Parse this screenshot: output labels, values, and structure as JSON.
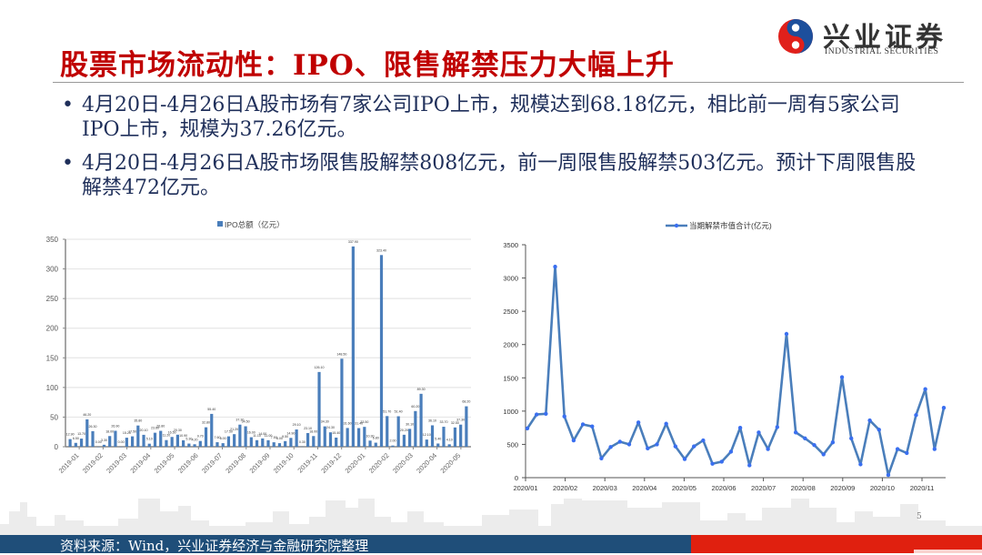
{
  "header": {
    "title": "股票市场流动性：IPO、限售解禁压力大幅上升",
    "logo_cn": "兴业证券",
    "logo_en": "INDUSTRIAL SECURITIES",
    "logo_colors": {
      "red": "#e0201b",
      "blue": "#1d4f9c"
    }
  },
  "bullets": [
    "4月20日-4月26日A股市场有7家公司IPO上市，规模达到68.18亿元，相比前一周有5家公司IPO上市，规模为37.26亿元。",
    "4月20日-4月26日A股市场限售股解禁808亿元，前一周限售股解禁503亿元。预计下周限售股解禁472亿元。"
  ],
  "footer": {
    "source": "资料来源：Wind，兴业证券经济与金融研究院整理",
    "page_number": "5"
  },
  "colors": {
    "title_red": "#c00000",
    "text_navy": "#1f2f5a",
    "series_blue": "#4a7ebb",
    "marker_blue": "#3a6ff0",
    "footer_navy": "#1f4e79",
    "footer_red": "#e0200f"
  },
  "chart_data": [
    {
      "type": "bar",
      "title": "",
      "legend": [
        "IPO总额（亿元）"
      ],
      "legend_position": "top",
      "xlabel": "",
      "ylabel": "",
      "ylim": [
        0,
        350
      ],
      "yticks": [
        0,
        50,
        100,
        150,
        200,
        250,
        300,
        350
      ],
      "grid": true,
      "x_tick_labels": [
        "2019-01",
        "2019-02",
        "2019-03",
        "2019-04",
        "2019-05",
        "2019-06",
        "2019-07",
        "2019-08",
        "2019-09",
        "2019-10",
        "2019-11",
        "2019-12",
        "2020-01",
        "2020-02",
        "2020-03",
        "2020-04",
        "2020-05"
      ],
      "series": [
        {
          "name": "IPO总额（亿元）",
          "values": [
            12.9,
            6.5,
            13.7,
            46.2,
            26.3,
            0,
            3.3,
            18.0,
            26.9,
            0,
            15.2,
            17.5,
            35.8,
            20.1,
            5.1,
            23.6,
            26.8,
            11.2,
            16.5,
            20.3,
            10.9,
            5.3,
            4.2,
            9.7,
            32.8,
            55.4,
            7.6,
            6.0,
            17.5,
            21.2,
            37.3,
            34.5,
            16.0,
            11.1,
            14.0,
            11.0,
            7.5,
            6.0,
            9.5,
            14.9,
            29.1,
            0.3,
            23.1,
            18.0,
            126.1,
            34.3,
            24.3,
            15.4,
            148.5,
            31.6,
            337.9,
            31.4,
            33.5,
            10.3,
            6.8,
            323.4,
            51.7,
            2.0,
            51.4,
            20.2,
            30.1,
            60.2,
            89.3,
            12.1,
            36.1,
            5.4,
            33.7,
            4.1,
            32.5,
            37.3,
            68.2
          ]
        }
      ]
    },
    {
      "type": "line",
      "title": "",
      "legend": [
        "当期解禁市值合计(亿元)"
      ],
      "legend_position": "top",
      "xlabel": "",
      "ylabel": "",
      "ylim": [
        0,
        3500
      ],
      "yticks": [
        0,
        500,
        1000,
        1500,
        2000,
        2500,
        3000,
        3500
      ],
      "grid": false,
      "x_tick_labels": [
        "2020/01",
        "2020/02",
        "2020/03",
        "2020/04",
        "2020/05",
        "2020/06",
        "2020/07",
        "2020/08",
        "2020/09",
        "2020/10",
        "2020/11"
      ],
      "series": [
        {
          "name": "当期解禁市值合计(亿元)",
          "values": [
            740,
            950,
            960,
            3170,
            920,
            560,
            800,
            770,
            290,
            460,
            540,
            500,
            830,
            440,
            500,
            810,
            470,
            280,
            470,
            560,
            210,
            240,
            390,
            750,
            185,
            680,
            430,
            760,
            2160,
            680,
            590,
            490,
            350,
            530,
            1510,
            590,
            200,
            860,
            720,
            40,
            430,
            370,
            940,
            1330,
            430,
            1050
          ]
        }
      ]
    }
  ]
}
